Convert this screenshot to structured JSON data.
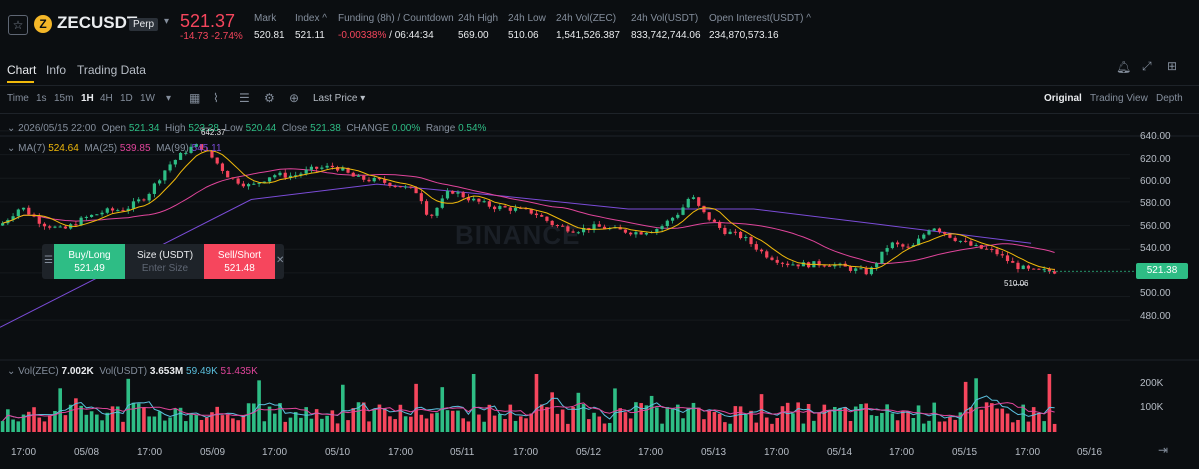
{
  "header": {
    "symbol": "ZECUSDT",
    "contract_type": "Perp",
    "last_price": "521.37",
    "change": "-14.73",
    "change_pct": "-2.74%",
    "stats": [
      {
        "label": "Mark",
        "value": "520.81"
      },
      {
        "label": "Index ^",
        "value": "521.11"
      },
      {
        "label": "Funding (8h) / Countdown",
        "value": "-0.00338%",
        "value2": "/ 06:44:34"
      },
      {
        "label": "24h High",
        "value": "569.00"
      },
      {
        "label": "24h Low",
        "value": "510.06"
      },
      {
        "label": "24h Vol(ZEC)",
        "value": "1,541,526.387"
      },
      {
        "label": "24h Vol(USDT)",
        "value": "833,742,744.06"
      },
      {
        "label": "Open Interest(USDT) ^",
        "value": "234,870,573.16"
      }
    ]
  },
  "tabs": [
    "Chart",
    "Info",
    "Trading Data"
  ],
  "toolbar": {
    "intervals": [
      "Time",
      "1s",
      "15m",
      "1H",
      "4H",
      "1D",
      "1W"
    ],
    "selected_interval": "1H",
    "price_type": "Last Price",
    "views": [
      "Original",
      "Trading View",
      "Depth"
    ],
    "selected_view": "Original"
  },
  "ohlc": {
    "date": "2026/05/15 22:00",
    "open_label": "Open",
    "open": "521.34",
    "high_label": "High",
    "high": "523.28",
    "low_label": "Low",
    "low": "520.44",
    "close_label": "Close",
    "close": "521.38",
    "change_label": "CHANGE",
    "change": "0.00%",
    "range_label": "Range",
    "range": "0.54%"
  },
  "ma": {
    "ma7_label": "MA(7)",
    "ma7": "524.64",
    "ma25_label": "MA(25)",
    "ma25": "539.85",
    "ma99_label": "MA(99)",
    "ma99": "545.11"
  },
  "trade": {
    "buy_label": "Buy/Long",
    "buy_price": "521.49",
    "size_label": "Size (USDT)",
    "size_placeholder": "Enter Size",
    "sell_label": "Sell/Short",
    "sell_price": "521.48"
  },
  "price_tag": "521.38",
  "high_marker": "642.37",
  "low_marker": "510.06",
  "y_ticks": [
    "640.00",
    "620.00",
    "600.00",
    "580.00",
    "560.00",
    "540.00",
    "500.00",
    "480.00"
  ],
  "x_ticks": [
    "17:00",
    "05/08",
    "17:00",
    "05/09",
    "17:00",
    "05/10",
    "17:00",
    "05/11",
    "17:00",
    "05/12",
    "17:00",
    "05/13",
    "17:00",
    "05/14",
    "17:00",
    "05/15",
    "17:00",
    "05/16"
  ],
  "volume": {
    "label": "Vol(ZEC)",
    "zec": "7.002K",
    "usdt_label": "Vol(USDT)",
    "usdt": "3.653M",
    "ma1": "59.49K",
    "ma2": "51.435K",
    "ticks": [
      "200K",
      "100K"
    ]
  },
  "watermark": "BINANCE",
  "colors": {
    "up": "#2ebd85",
    "down": "#f6465d",
    "ma7": "#f0b90b",
    "ma25": "#e0459b",
    "ma99": "#7b4cd8",
    "accent": "#f0b90b"
  },
  "chart_data": {
    "type": "candlestick",
    "interval": "1H",
    "ylim": [
      470,
      645
    ],
    "x_range": [
      "05/07 17:00",
      "05/16 02:00"
    ],
    "close_path": [
      {
        "x": "05/07 17:00",
        "y": 560
      },
      {
        "x": "05/07 21:00",
        "y": 576
      },
      {
        "x": "05/08 01:00",
        "y": 562
      },
      {
        "x": "05/08 05:00",
        "y": 556
      },
      {
        "x": "05/08 09:00",
        "y": 566
      },
      {
        "x": "05/08 13:00",
        "y": 572
      },
      {
        "x": "05/08 17:00",
        "y": 574
      },
      {
        "x": "05/08 21:00",
        "y": 585
      },
      {
        "x": "05/09 01:00",
        "y": 610
      },
      {
        "x": "05/09 05:00",
        "y": 625
      },
      {
        "x": "05/09 07:00",
        "y": 628
      },
      {
        "x": "05/09 09:00",
        "y": 620
      },
      {
        "x": "05/09 13:00",
        "y": 600
      },
      {
        "x": "05/09 17:00",
        "y": 593
      },
      {
        "x": "05/09 21:00",
        "y": 603
      },
      {
        "x": "05/10 01:00",
        "y": 602
      },
      {
        "x": "05/10 05:00",
        "y": 608
      },
      {
        "x": "05/10 09:00",
        "y": 610
      },
      {
        "x": "05/10 13:00",
        "y": 600
      },
      {
        "x": "05/10 17:00",
        "y": 598
      },
      {
        "x": "05/10 21:00",
        "y": 594
      },
      {
        "x": "05/11 01:00",
        "y": 588
      },
      {
        "x": "05/11 03:00",
        "y": 566
      },
      {
        "x": "05/11 07:00",
        "y": 590
      },
      {
        "x": "05/11 11:00",
        "y": 582
      },
      {
        "x": "05/11 15:00",
        "y": 576
      },
      {
        "x": "05/11 19:00",
        "y": 574
      },
      {
        "x": "05/11 23:00",
        "y": 571
      },
      {
        "x": "05/12 03:00",
        "y": 560
      },
      {
        "x": "05/12 07:00",
        "y": 556
      },
      {
        "x": "05/12 11:00",
        "y": 559
      },
      {
        "x": "05/12 15:00",
        "y": 556
      },
      {
        "x": "05/12 19:00",
        "y": 554
      },
      {
        "x": "05/12 23:00",
        "y": 558
      },
      {
        "x": "05/13 03:00",
        "y": 572
      },
      {
        "x": "05/13 05:00",
        "y": 586
      },
      {
        "x": "05/13 07:00",
        "y": 572
      },
      {
        "x": "05/13 11:00",
        "y": 556
      },
      {
        "x": "05/13 15:00",
        "y": 550
      },
      {
        "x": "05/13 19:00",
        "y": 536
      },
      {
        "x": "05/13 23:00",
        "y": 528
      },
      {
        "x": "05/14 03:00",
        "y": 527
      },
      {
        "x": "05/14 07:00",
        "y": 528
      },
      {
        "x": "05/14 11:00",
        "y": 524
      },
      {
        "x": "05/14 15:00",
        "y": 520
      },
      {
        "x": "05/14 19:00",
        "y": 545
      },
      {
        "x": "05/14 23:00",
        "y": 540
      },
      {
        "x": "05/15 03:00",
        "y": 560
      },
      {
        "x": "05/15 07:00",
        "y": 550
      },
      {
        "x": "05/15 11:00",
        "y": 542
      },
      {
        "x": "05/15 15:00",
        "y": 538
      },
      {
        "x": "05/15 19:00",
        "y": 526
      },
      {
        "x": "05/15 22:00",
        "y": 521.38
      }
    ],
    "ma99_path": [
      {
        "x": "05/07 17:00",
        "y": 474
      },
      {
        "x": "05/08 17:00",
        "y": 528
      },
      {
        "x": "05/09 17:00",
        "y": 582
      },
      {
        "x": "05/10 17:00",
        "y": 595
      },
      {
        "x": "05/11 17:00",
        "y": 585
      },
      {
        "x": "05/12 17:00",
        "y": 574
      },
      {
        "x": "05/13 17:00",
        "y": 574
      },
      {
        "x": "05/14 17:00",
        "y": 561
      },
      {
        "x": "05/15 22:00",
        "y": 545.11
      }
    ],
    "max_marker": {
      "x": "05/09 07:00",
      "y": 642.37
    },
    "min_marker": {
      "x": "05/15 21:00",
      "y": 510.06
    }
  }
}
